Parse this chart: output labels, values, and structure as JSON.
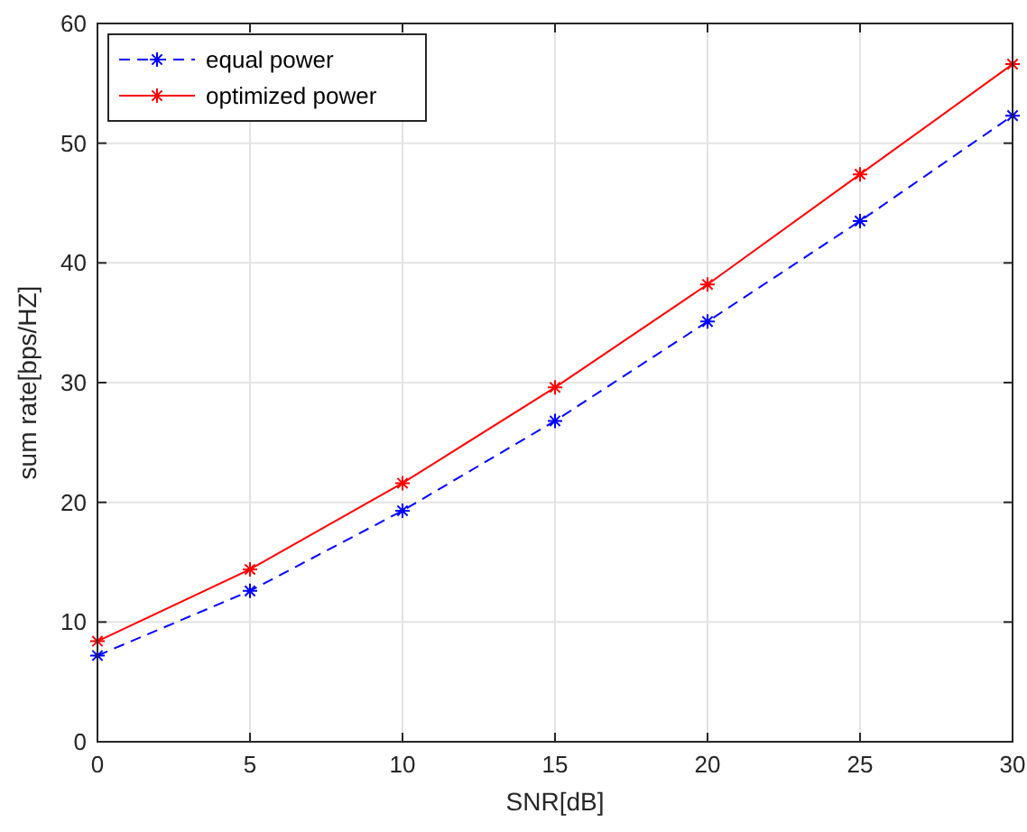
{
  "chart_data": {
    "type": "line",
    "xlabel": "SNR[dB]",
    "ylabel": "sum rate[bps/HZ]",
    "x": [
      0,
      5,
      10,
      15,
      20,
      25,
      30
    ],
    "series": [
      {
        "name": "equal power",
        "color": "#0000ff",
        "line_style": "dashed",
        "values": [
          7.2,
          12.6,
          19.3,
          26.8,
          35.1,
          43.5,
          52.3
        ]
      },
      {
        "name": "optimized power",
        "color": "#ff0000",
        "line_style": "solid",
        "values": [
          8.4,
          14.4,
          21.6,
          29.6,
          38.2,
          47.4,
          56.6
        ]
      }
    ],
    "xlim": [
      0,
      30
    ],
    "xticks": [
      0,
      5,
      10,
      15,
      20,
      25,
      30
    ],
    "ylim": [
      0,
      60
    ],
    "yticks": [
      0,
      10,
      20,
      30,
      40,
      50,
      60
    ],
    "grid": true,
    "legend": "top left",
    "marker": "cross"
  }
}
